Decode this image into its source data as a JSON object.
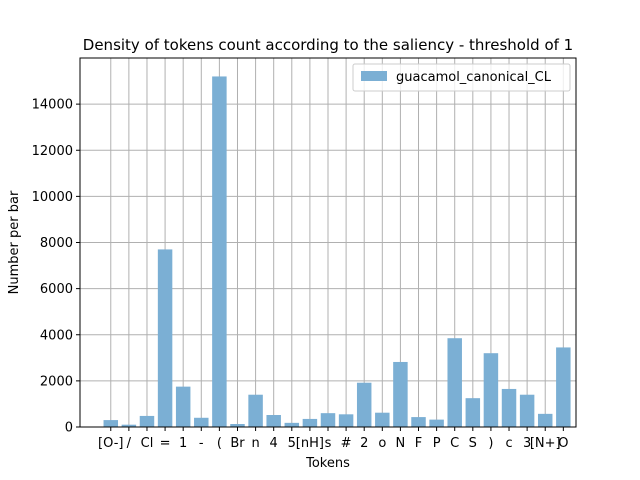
{
  "chart_data": {
    "type": "bar",
    "title": "Density of tokens count according to the saliency - threshold of 1",
    "xlabel": "Tokens",
    "ylabel": "Number per bar",
    "ylim": [
      0,
      16000
    ],
    "yticks": [
      0,
      2000,
      4000,
      6000,
      8000,
      10000,
      12000,
      14000
    ],
    "grid": true,
    "legend_position": "top-right",
    "bar_color": "#7bafd4",
    "series": [
      {
        "name": "guacamol_canonical_CL",
        "categories": [
          "[O-]",
          "/",
          "Cl",
          "=",
          "1",
          "-",
          "(",
          "Br",
          "n",
          "4",
          "5",
          "[nH]",
          "s",
          "#",
          "2",
          "o",
          "N",
          "F",
          "P",
          "C",
          "S",
          ")",
          "c",
          "3",
          "[N+]",
          "O"
        ],
        "values": [
          300,
          100,
          480,
          7700,
          1750,
          400,
          15200,
          130,
          1400,
          520,
          180,
          350,
          600,
          550,
          1920,
          620,
          2820,
          430,
          320,
          3850,
          1250,
          3200,
          1650,
          1400,
          570,
          3450
        ]
      }
    ]
  }
}
